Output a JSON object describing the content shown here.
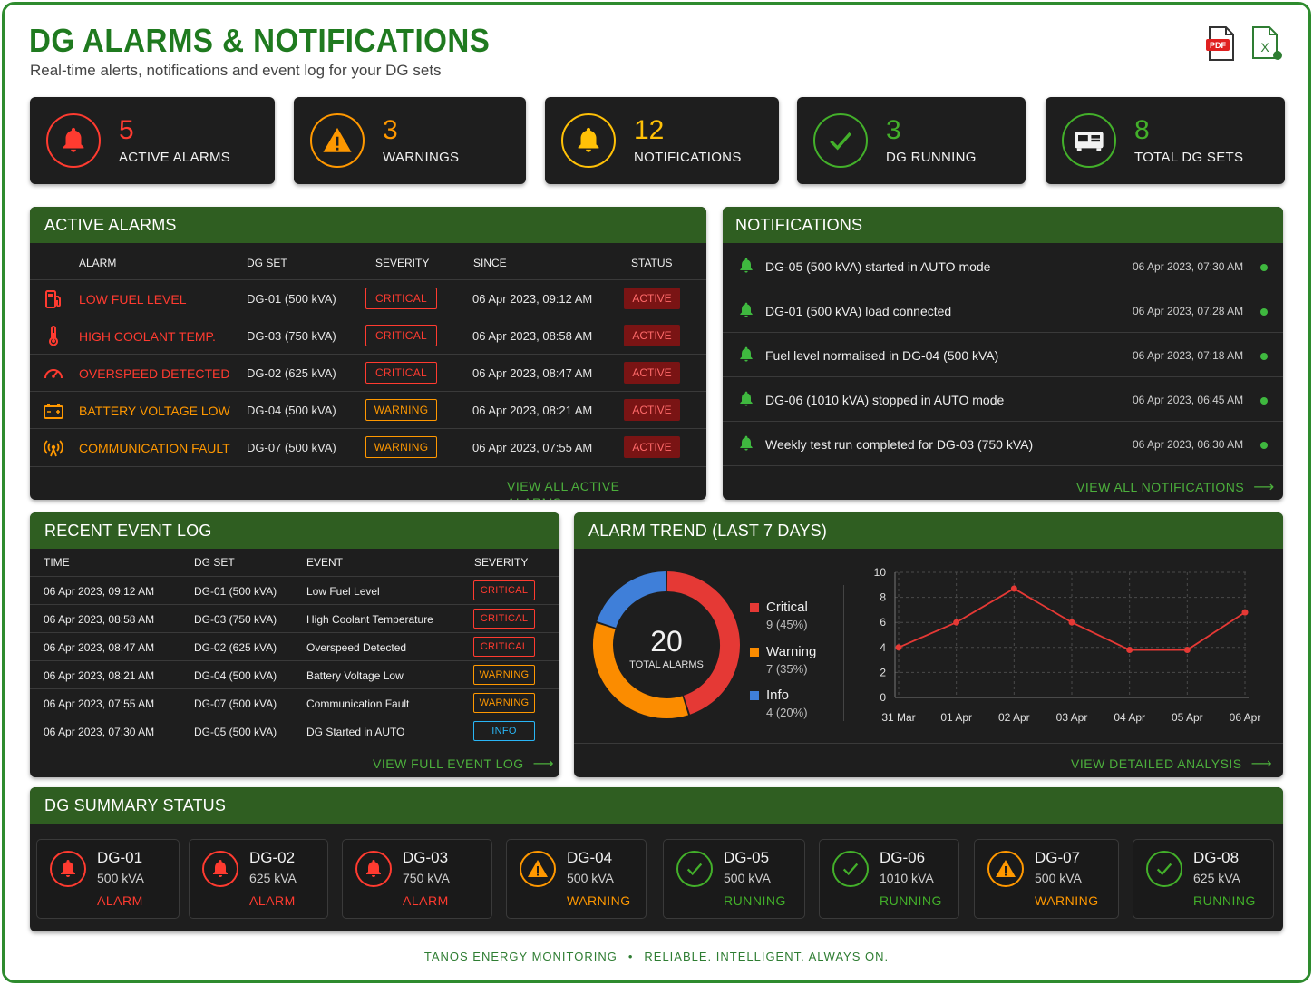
{
  "header": {
    "title": "DG ALARMS & NOTIFICATIONS",
    "subtitle": "Real-time alerts, notifications and event log for your DG sets",
    "export_pdf_label": "PDF",
    "export_excel_label": "X"
  },
  "kpis": [
    {
      "value": "5",
      "label": "ACTIVE ALARMS",
      "color": "#ff3b30",
      "icon": "bell-icon"
    },
    {
      "value": "3",
      "label": "WARNINGS",
      "color": "#ff9800",
      "icon": "warning-icon"
    },
    {
      "value": "12",
      "label": "NOTIFICATIONS",
      "color": "#ffc107",
      "icon": "bell-icon"
    },
    {
      "value": "3",
      "label": "DG RUNNING",
      "color": "#43b02a",
      "icon": "check-icon"
    },
    {
      "value": "8",
      "label": "TOTAL DG SETS",
      "color": "#43b02a",
      "icon": "generator-icon"
    }
  ],
  "active_alarms": {
    "title": "ACTIVE ALARMS",
    "columns": [
      "ALARM",
      "DG SET",
      "SEVERITY",
      "SINCE",
      "STATUS"
    ],
    "rows": [
      {
        "icon": "fuel-pump-icon",
        "alarm": "LOW FUEL LEVEL",
        "dg": "DG-01 (500 kVA)",
        "severity": "CRITICAL",
        "since": "06 Apr 2023, 09:12 AM",
        "status": "ACTIVE"
      },
      {
        "icon": "thermometer-icon",
        "alarm": "HIGH COOLANT TEMP.",
        "dg": "DG-03 (750 kVA)",
        "severity": "CRITICAL",
        "since": "06 Apr 2023, 08:58 AM",
        "status": "ACTIVE"
      },
      {
        "icon": "speedometer-icon",
        "alarm": "OVERSPEED DETECTED",
        "dg": "DG-02 (625 kVA)",
        "severity": "CRITICAL",
        "since": "06 Apr 2023, 08:47 AM",
        "status": "ACTIVE"
      },
      {
        "icon": "battery-icon",
        "alarm": "BATTERY VOLTAGE LOW",
        "dg": "DG-04 (500 kVA)",
        "severity": "WARNING",
        "since": "06 Apr 2023, 08:21 AM",
        "status": "ACTIVE"
      },
      {
        "icon": "signal-icon",
        "alarm": "COMMUNICATION FAULT",
        "dg": "DG-07 (500 kVA)",
        "severity": "WARNING",
        "since": "06 Apr 2023, 07:55 AM",
        "status": "ACTIVE"
      }
    ],
    "link": "VIEW ALL ACTIVE ALARMS"
  },
  "notifications": {
    "title": "NOTIFICATIONS",
    "rows": [
      {
        "text": "DG-05 (500 kVA) started in AUTO mode",
        "time": "06 Apr 2023, 07:30 AM"
      },
      {
        "text": "DG-01 (500 kVA) load connected",
        "time": "06 Apr 2023, 07:28 AM"
      },
      {
        "text": "Fuel level normalised in DG-04 (500 kVA)",
        "time": "06 Apr 2023, 07:18 AM"
      },
      {
        "text": "DG-06 (1010 kVA) stopped in AUTO mode",
        "time": "06 Apr 2023, 06:45 AM"
      },
      {
        "text": "Weekly test run completed for DG-03 (750 kVA)",
        "time": "06 Apr 2023, 06:30 AM"
      }
    ],
    "link": "VIEW ALL NOTIFICATIONS"
  },
  "event_log": {
    "title": "RECENT EVENT LOG",
    "columns": [
      "TIME",
      "DG SET",
      "EVENT",
      "SEVERITY"
    ],
    "rows": [
      {
        "time": "06 Apr 2023, 09:12 AM",
        "dg": "DG-01 (500 kVA)",
        "event": "Low Fuel Level",
        "severity": "CRITICAL"
      },
      {
        "time": "06 Apr 2023, 08:58 AM",
        "dg": "DG-03 (750 kVA)",
        "event": "High Coolant Temperature",
        "severity": "CRITICAL"
      },
      {
        "time": "06 Apr 2023, 08:47 AM",
        "dg": "DG-02 (625 kVA)",
        "event": "Overspeed Detected",
        "severity": "CRITICAL"
      },
      {
        "time": "06 Apr 2023, 08:21 AM",
        "dg": "DG-04 (500 kVA)",
        "event": "Battery Voltage Low",
        "severity": "WARNING"
      },
      {
        "time": "06 Apr 2023, 07:55 AM",
        "dg": "DG-07 (500 kVA)",
        "event": "Communication Fault",
        "severity": "WARNING"
      },
      {
        "time": "06 Apr 2023, 07:30 AM",
        "dg": "DG-05 (500 kVA)",
        "event": "DG Started in AUTO",
        "severity": "INFO"
      }
    ],
    "link": "VIEW FULL EVENT LOG"
  },
  "alarm_trend": {
    "title": "ALARM TREND (LAST 7 DAYS)",
    "donut_total": "20",
    "donut_label": "TOTAL ALARMS",
    "legend": [
      {
        "name": "Critical",
        "detail": "9 (45%)",
        "color": "#e53935"
      },
      {
        "name": "Warning",
        "detail": "7 (35%)",
        "color": "#fb8c00"
      },
      {
        "name": "Info",
        "detail": "4 (20%)",
        "color": "#3f7fd9"
      }
    ],
    "link": "VIEW DETAILED ANALYSIS"
  },
  "chart_data": [
    {
      "type": "pie",
      "categories": [
        "Critical",
        "Warning",
        "Info"
      ],
      "values": [
        9,
        7,
        4
      ],
      "colors": [
        "#e53935",
        "#fb8c00",
        "#3f7fd9"
      ]
    },
    {
      "type": "line",
      "categories": [
        "31 Mar",
        "01 Apr",
        "02 Apr",
        "03 Apr",
        "04 Apr",
        "05 Apr",
        "06 Apr"
      ],
      "series": [
        {
          "values": [
            4,
            6,
            8.7,
            6,
            3.8,
            3.8,
            6.8
          ]
        }
      ],
      "ylim": [
        0,
        10
      ],
      "yticks": [
        "0",
        "2",
        "4",
        "6",
        "8",
        "10"
      ],
      "grid": true,
      "color": "#e53935"
    }
  ],
  "dg_summary": {
    "title": "DG SUMMARY STATUS",
    "units": [
      {
        "name": "DG-01",
        "capacity": "500 kVA",
        "status": "ALARM",
        "color": "#ff3b30",
        "icon": "bell-icon"
      },
      {
        "name": "DG-02",
        "capacity": "625 kVA",
        "status": "ALARM",
        "color": "#ff3b30",
        "icon": "bell-icon"
      },
      {
        "name": "DG-03",
        "capacity": "750 kVA",
        "status": "ALARM",
        "color": "#ff3b30",
        "icon": "bell-icon"
      },
      {
        "name": "DG-04",
        "capacity": "500 kVA",
        "status": "WARNING",
        "color": "#ff9800",
        "icon": "warning-icon"
      },
      {
        "name": "DG-05",
        "capacity": "500 kVA",
        "status": "RUNNING",
        "color": "#43b02a",
        "icon": "check-icon"
      },
      {
        "name": "DG-06",
        "capacity": "1010 kVA",
        "status": "RUNNING",
        "color": "#43b02a",
        "icon": "check-icon"
      },
      {
        "name": "DG-07",
        "capacity": "500 kVA",
        "status": "WARNING",
        "color": "#ff9800",
        "icon": "warning-icon"
      },
      {
        "name": "DG-08",
        "capacity": "625 kVA",
        "status": "RUNNING",
        "color": "#43b02a",
        "icon": "check-icon"
      }
    ]
  },
  "footer": {
    "brand": "TANOS ENERGY MONITORING",
    "separator": "•",
    "tagline": "RELIABLE. INTELLIGENT. ALWAYS ON."
  }
}
